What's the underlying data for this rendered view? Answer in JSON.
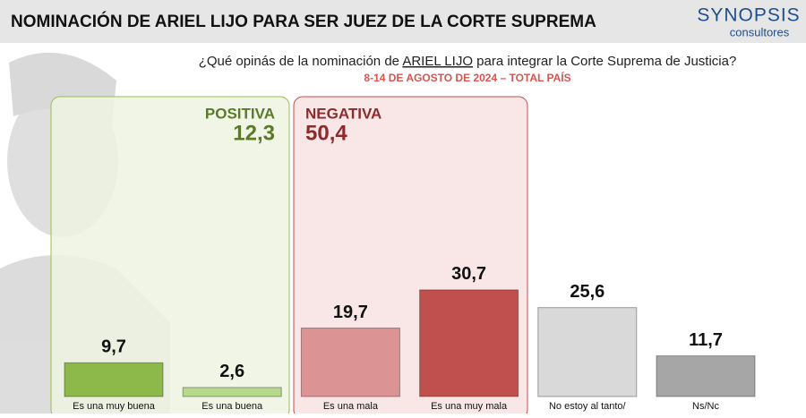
{
  "chart_data": {
    "type": "bar",
    "title": "NOMINACIÓN DE ARIEL LIJO PARA SER JUEZ DE LA CORTE SUPREMA",
    "logo": [
      "SYNOPSIS",
      "consultores"
    ],
    "subtitle": [
      "¿Qué opinás de la nominación de",
      "ARIEL LIJO",
      "para integrar la Corte Suprema de Justicia?"
    ],
    "date_label": "8-14 DE AGOSTO DE 2024 – TOTAL PAÍS",
    "groups": [
      {
        "name": "POSITIVA",
        "value": 12.3,
        "value_label": "12,3",
        "color": "#5a7a2a"
      },
      {
        "name": "NEGATIVA",
        "value": 50.4,
        "value_label": "50,4",
        "color": "#8b2b2b"
      }
    ],
    "categories": [
      "Es una muy buena",
      "Es una buena",
      "Es una mala",
      "Es una muy mala",
      "No estoy al tanto/",
      "Ns/Nc"
    ],
    "values": [
      9.7,
      2.6,
      19.7,
      30.7,
      25.6,
      11.7
    ],
    "value_labels": [
      "9,7",
      "2,6",
      "19,7",
      "30,7",
      "25,6",
      "11,7"
    ],
    "colors": [
      "#8db84a",
      "#b7d98c",
      "#dc9393",
      "#c0504d",
      "#d9d9d9",
      "#a6a6a6"
    ]
  }
}
